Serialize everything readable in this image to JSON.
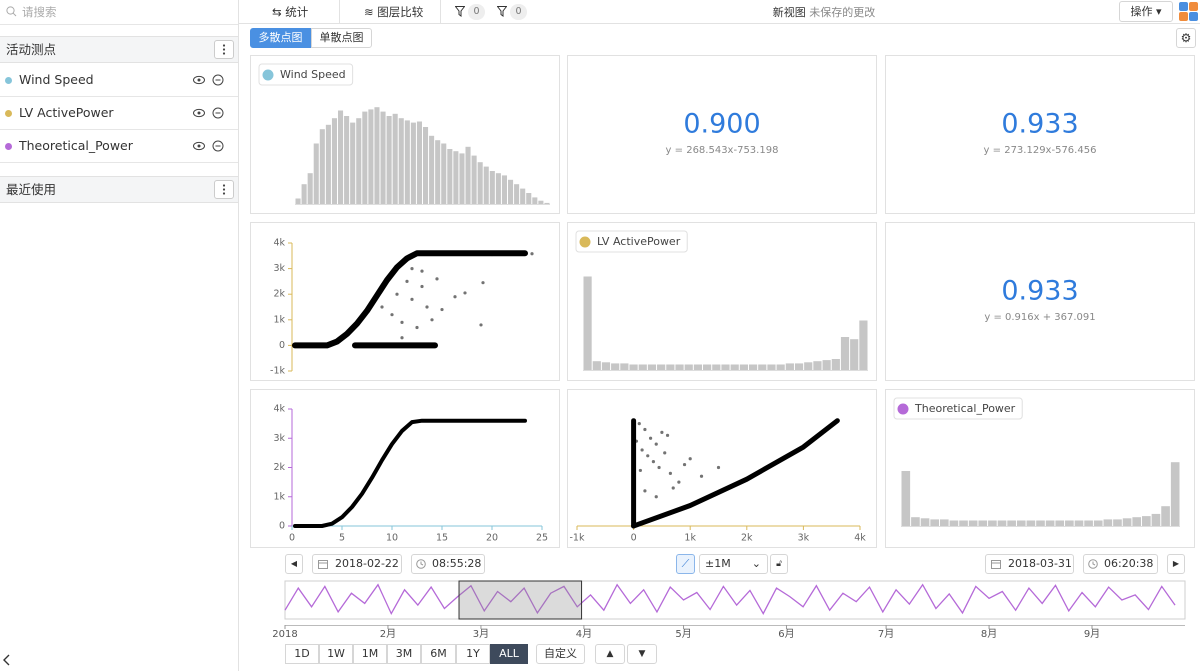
{
  "sidebar": {
    "search_placeholder": "请搜索",
    "active_title": "活动测点",
    "items": [
      {
        "name": "Wind Speed",
        "color": "#86c5da"
      },
      {
        "name": "LV ActivePower",
        "color": "#d9b95a"
      },
      {
        "name": "Theoretical_Power",
        "color": "#b56ad8"
      }
    ],
    "recent_title": "最近使用"
  },
  "toolbar": {
    "tabs": [
      "统计",
      "图层比较"
    ],
    "filters": [
      0,
      0
    ],
    "view_title": "新视图",
    "unsaved": "未保存的更改",
    "action": "操作"
  },
  "subtabs": {
    "items": [
      "多散点图",
      "单散点图"
    ],
    "active": 0
  },
  "chart_data": [
    {
      "type": "bar",
      "series": [
        {
          "name": "Wind Speed",
          "color": "#86c5da",
          "values": [
            5,
            18,
            28,
            55,
            68,
            72,
            78,
            85,
            80,
            74,
            78,
            84,
            86,
            88,
            84,
            80,
            82,
            78,
            76,
            74,
            75,
            70,
            62,
            58,
            55,
            50,
            48,
            46,
            52,
            44,
            38,
            34,
            30,
            28,
            26,
            22,
            18,
            14,
            10,
            6,
            3,
            1
          ]
        }
      ]
    },
    {
      "type": "stat",
      "value": 0.9,
      "value_label": "0.900",
      "subtitle": "y = 268.543x-753.198"
    },
    {
      "type": "stat",
      "value": 0.933,
      "value_label": "0.933",
      "subtitle": "y = 273.129x-576.456"
    },
    {
      "type": "scatter",
      "xlim": [
        0,
        25
      ],
      "ylim": [
        -1000,
        4000
      ],
      "yticks": [
        {
          "value": -1000,
          "label": "-1k"
        },
        0,
        {
          "value": 1000,
          "label": "1k"
        },
        {
          "value": 2000,
          "label": "2k"
        },
        {
          "value": 3000,
          "label": "3k"
        },
        {
          "value": 4000,
          "label": "4k"
        }
      ],
      "y_color": "#d9b95a",
      "curves": [
        {
          "x": [
            0.3,
            3.5,
            4.5,
            5.5,
            6.5,
            7.5,
            8.5,
            9.5,
            10.5,
            11.5,
            12.5,
            23.3
          ],
          "y": [
            0,
            0,
            150,
            450,
            850,
            1350,
            1950,
            2550,
            3050,
            3400,
            3600,
            3600
          ]
        },
        {
          "x": [
            6.3,
            14.3
          ],
          "y": [
            0,
            0
          ]
        }
      ],
      "points": {
        "x": [
          6.5,
          7.5,
          8.5,
          9.5,
          10.5,
          11.5,
          12.5,
          13.5,
          14.3,
          9,
          10,
          10.5,
          11,
          11.5,
          12,
          12.5,
          13,
          13.5,
          14,
          11,
          12,
          13,
          16.3,
          17.3,
          19.1,
          18.9,
          15,
          14.5,
          20,
          22,
          24
        ],
        "y": [
          0,
          0,
          0,
          0,
          0,
          0,
          0,
          0,
          0,
          1500,
          1200,
          2000,
          900,
          2500,
          1800,
          700,
          2300,
          1500,
          1000,
          300,
          3000,
          2900,
          1900,
          2050,
          2450,
          800,
          1400,
          2600,
          3550,
          3600,
          3580
        ]
      }
    },
    {
      "type": "bar",
      "series": [
        {
          "name": "LV ActivePower",
          "color": "#d9b95a",
          "values": [
            85,
            8,
            7,
            6,
            6,
            5,
            5,
            5,
            5,
            5,
            5,
            5,
            5,
            5,
            5,
            5,
            5,
            5,
            5,
            5,
            5,
            5,
            6,
            6,
            7,
            8,
            9,
            10,
            30,
            28,
            45
          ]
        }
      ]
    },
    {
      "type": "stat",
      "value": 0.933,
      "value_label": "0.933",
      "subtitle": "y = 0.916x + 367.091"
    },
    {
      "type": "scatter",
      "xlim": [
        0,
        25
      ],
      "ylim": [
        0,
        4000
      ],
      "xticks": [
        0,
        5,
        10,
        15,
        20,
        25
      ],
      "yticks": [
        0,
        {
          "value": 1000,
          "label": "1k"
        },
        {
          "value": 2000,
          "label": "2k"
        },
        {
          "value": 3000,
          "label": "3k"
        },
        {
          "value": 4000,
          "label": "4k"
        }
      ],
      "y_color": "#b56ad8",
      "x_color": "#86c5da",
      "curves": [
        {
          "x": [
            0.3,
            3,
            4,
            5,
            6,
            7,
            8,
            9,
            10,
            11,
            12,
            13,
            23.3
          ],
          "y": [
            0,
            0,
            80,
            300,
            650,
            1100,
            1650,
            2250,
            2800,
            3250,
            3550,
            3600,
            3600
          ]
        }
      ],
      "points": {
        "x": [],
        "y": []
      }
    },
    {
      "type": "scatter",
      "xlim": [
        -1000,
        4000
      ],
      "ylim": [
        0,
        4000
      ],
      "xticks": [
        {
          "value": -1000,
          "label": "-1k"
        },
        0,
        {
          "value": 1000,
          "label": "1k"
        },
        {
          "value": 2000,
          "label": "2k"
        },
        {
          "value": 3000,
          "label": "3k"
        },
        {
          "value": 4000,
          "label": "4k"
        }
      ],
      "x_color": "#d9b95a",
      "curves": [
        {
          "x": [
            0,
            0
          ],
          "y": [
            0,
            3600
          ]
        },
        {
          "x": [
            0,
            1000,
            2000,
            3000,
            3600
          ],
          "y": [
            0,
            700,
            1600,
            2700,
            3600
          ]
        }
      ],
      "points": {
        "x": [
          100,
          200,
          300,
          400,
          500,
          600,
          150,
          250,
          350,
          450,
          550,
          650,
          800,
          900,
          1000,
          1200,
          1500,
          200,
          400,
          700,
          50,
          120
        ],
        "y": [
          3500,
          3300,
          3000,
          2800,
          3200,
          3100,
          2600,
          2400,
          2200,
          2000,
          2500,
          1800,
          1500,
          2100,
          2300,
          1700,
          2000,
          1200,
          1000,
          1300,
          2900,
          1900
        ]
      }
    },
    {
      "type": "bar",
      "series": [
        {
          "name": "Theoretical_Power",
          "color": "#b56ad8",
          "values": [
            50,
            8,
            7,
            6,
            6,
            5,
            5,
            5,
            5,
            5,
            5,
            5,
            5,
            5,
            5,
            5,
            5,
            5,
            5,
            5,
            5,
            6,
            6,
            7,
            8,
            9,
            11,
            18,
            58
          ]
        }
      ]
    }
  ],
  "time": {
    "start_date": "2018-02-22",
    "start_time": "08:55:28",
    "window": "±1M",
    "end_date": "2018-03-31",
    "end_time": "06:20:38"
  },
  "timeline": {
    "xlim": [
      0,
      271
    ],
    "color": "#b56ad8",
    "window": [
      52.4,
      89.3
    ],
    "xticks": [
      {
        "value": 0,
        "label": "2018"
      },
      {
        "value": 31,
        "label": "2月"
      },
      {
        "value": 59,
        "label": "3月"
      },
      {
        "value": 90,
        "label": "4月"
      },
      {
        "value": 120,
        "label": "5月"
      },
      {
        "value": 151,
        "label": "6月"
      },
      {
        "value": 181,
        "label": "7月"
      },
      {
        "value": 212,
        "label": "8月"
      },
      {
        "value": 243,
        "label": "9月"
      }
    ],
    "x": [
      0,
      4,
      8,
      12,
      16,
      20,
      24,
      28,
      32,
      36,
      40,
      44,
      48,
      52,
      56,
      60,
      64,
      68,
      72,
      76,
      80,
      84,
      88,
      92,
      96,
      100,
      104,
      108,
      112,
      116,
      120,
      124,
      128,
      132,
      136,
      140,
      144,
      148,
      152,
      156,
      160,
      164,
      168,
      172,
      176,
      180,
      184,
      188,
      192,
      196,
      200,
      204,
      208,
      212,
      216,
      220,
      224,
      228,
      232,
      236,
      240,
      244,
      248,
      252,
      256,
      260,
      264,
      268
    ],
    "values": [
      20,
      85,
      30,
      90,
      15,
      70,
      40,
      95,
      10,
      80,
      35,
      88,
      25,
      60,
      92,
      18,
      75,
      45,
      85,
      12,
      70,
      90,
      30,
      65,
      20,
      95,
      40,
      80,
      15,
      88,
      50,
      72,
      22,
      90,
      35,
      78,
      10,
      85,
      60,
      30,
      92,
      20,
      70,
      45,
      88,
      15,
      80,
      38,
      95,
      25,
      68,
      12,
      90,
      55,
      75,
      20,
      85,
      40,
      93,
      18,
      72,
      30,
      88,
      50,
      65,
      22,
      90,
      35
    ]
  },
  "ranges": {
    "items": [
      "1D",
      "1W",
      "1M",
      "3M",
      "6M",
      "1Y",
      "ALL"
    ],
    "active": 6,
    "custom": "自定义"
  }
}
